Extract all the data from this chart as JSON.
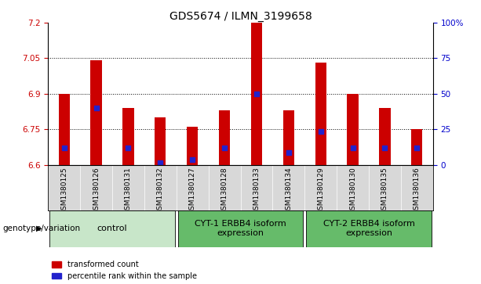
{
  "title": "GDS5674 / ILMN_3199658",
  "samples": [
    "GSM1380125",
    "GSM1380126",
    "GSM1380131",
    "GSM1380132",
    "GSM1380127",
    "GSM1380128",
    "GSM1380133",
    "GSM1380134",
    "GSM1380129",
    "GSM1380130",
    "GSM1380135",
    "GSM1380136"
  ],
  "red_values": [
    6.9,
    7.04,
    6.84,
    6.8,
    6.76,
    6.83,
    7.2,
    6.83,
    7.03,
    6.9,
    6.84,
    6.75
  ],
  "blue_values": [
    6.67,
    6.84,
    6.67,
    6.61,
    6.62,
    6.67,
    6.9,
    6.65,
    6.74,
    6.67,
    6.67,
    6.67
  ],
  "ymin": 6.6,
  "ymax": 7.2,
  "yticks_left": [
    6.6,
    6.75,
    6.9,
    7.05,
    7.2
  ],
  "ytick_left_labels": [
    "6.6",
    "6.75",
    "6.9",
    "7.05",
    "7.2"
  ],
  "yticks_right_pct": [
    0,
    25,
    50,
    75,
    100
  ],
  "ytick_right_labels": [
    "0",
    "25",
    "50",
    "75",
    "100%"
  ],
  "hlines": [
    6.75,
    6.9,
    7.05
  ],
  "group_boundaries": [
    {
      "label": "control",
      "start": 0,
      "end": 3,
      "color": "#c8e6c9"
    },
    {
      "label": "CYT-1 ERBB4 isoform\nexpression",
      "start": 4,
      "end": 7,
      "color": "#66bb6a"
    },
    {
      "label": "CYT-2 ERBB4 isoform\nexpression",
      "start": 8,
      "end": 11,
      "color": "#66bb6a"
    }
  ],
  "bar_color": "#cc0000",
  "dot_color": "#2222cc",
  "bar_width": 0.35,
  "dot_size": 22,
  "left_tick_color": "#cc0000",
  "right_tick_color": "#0000cc",
  "legend_red": "transformed count",
  "legend_blue": "percentile rank within the sample",
  "genotype_label": "genotype/variation",
  "title_fontsize": 10,
  "tick_fontsize": 7.5,
  "sample_fontsize": 6.5,
  "group_label_fontsize": 8
}
